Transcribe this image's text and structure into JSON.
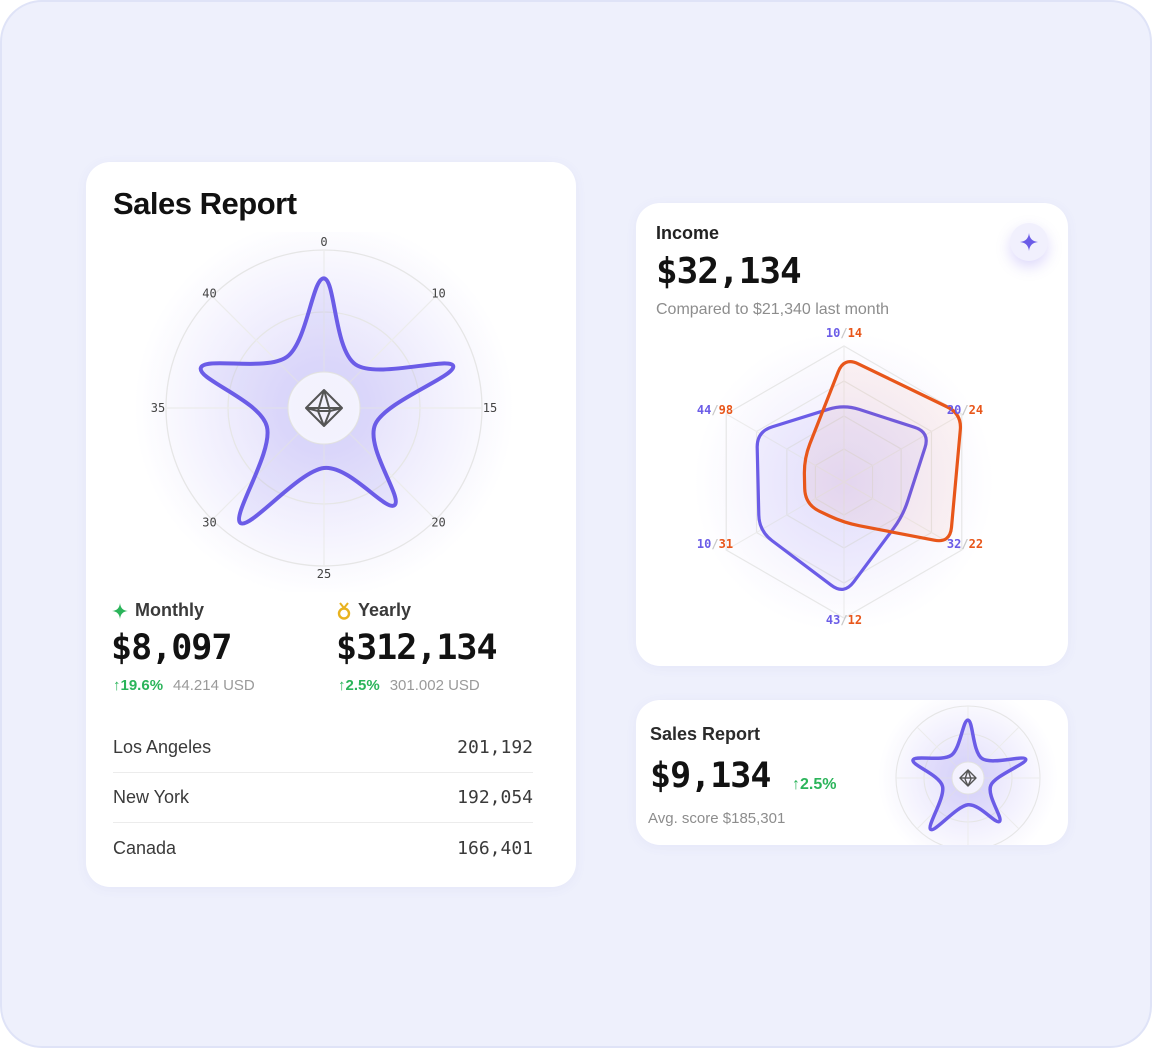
{
  "colors": {
    "purple": "#6b5ce7",
    "orange": "#e8561a",
    "green": "#2bb45a",
    "gold": "#e8b21f"
  },
  "sales_report": {
    "title": "Sales Report",
    "center_icon": "octahedron-icon",
    "monthly": {
      "label": "Monthly",
      "icon": "sparkle-icon",
      "value": "$8,097",
      "change": "↑19.6%",
      "usd": "44.214 USD"
    },
    "yearly": {
      "label": "Yearly",
      "icon": "medal-icon",
      "value": "$312,134",
      "change": "↑2.5%",
      "usd": "301.002 USD"
    },
    "cities": [
      {
        "name": "Los Angeles",
        "value": "201,192"
      },
      {
        "name": "New York",
        "value": "192,054"
      },
      {
        "name": "Canada",
        "value": "166,401"
      }
    ]
  },
  "income": {
    "label": "Income",
    "value": "$32,134",
    "compare": "Compared to $21,340 last month",
    "action_icon": "sparkle-icon"
  },
  "mini_report": {
    "label": "Sales Report",
    "value": "$9,134",
    "change": "↑2.5%",
    "avg": "Avg. score $185,301"
  },
  "chart_data": [
    {
      "type": "radar",
      "ticks": [
        "0",
        "10",
        "15",
        "20",
        "25",
        "30",
        "35",
        "40"
      ],
      "series": [
        {
          "values": [
            0.82,
            0.34,
            0.86,
            0.34,
            0.76,
            0.38,
            0.9,
            0.38,
            0.82,
            0.4
          ]
        }
      ]
    },
    {
      "type": "radar",
      "axes": [
        {
          "a": "10",
          "b": "14"
        },
        {
          "a": "20",
          "b": "24"
        },
        {
          "a": "32",
          "b": "22"
        },
        {
          "a": "43",
          "b": "12"
        },
        {
          "a": "10",
          "b": "31"
        },
        {
          "a": "44",
          "b": "98"
        }
      ],
      "series": [
        {
          "color": "#6b5ce7",
          "values": [
            0.57,
            0.73,
            0.5,
            0.83,
            0.72,
            0.74
          ]
        },
        {
          "color": "#e8561a",
          "values": [
            0.92,
            1.0,
            0.9,
            0.3,
            0.33,
            0.34
          ]
        }
      ]
    }
  ]
}
